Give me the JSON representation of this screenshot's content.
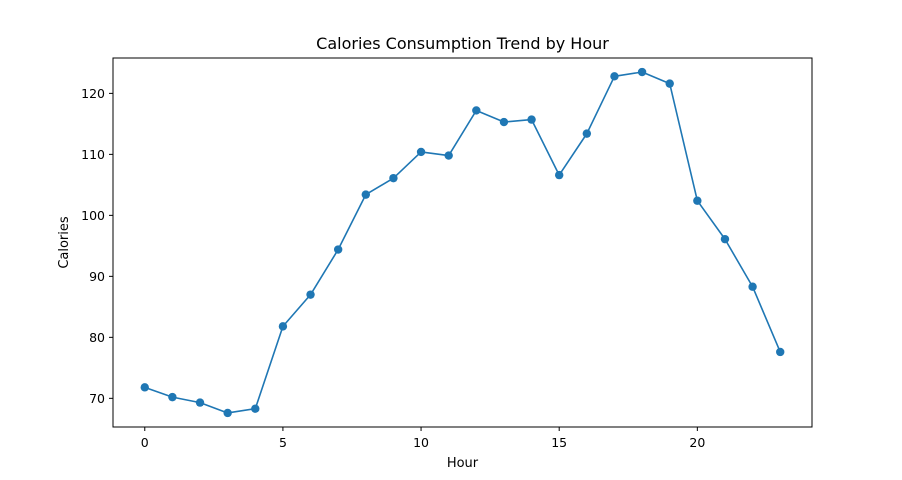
{
  "chart_data": {
    "type": "line",
    "title": "Calories Consumption Trend by Hour",
    "xlabel": "Hour",
    "ylabel": "Calories",
    "x": [
      0,
      1,
      2,
      3,
      4,
      5,
      6,
      7,
      8,
      9,
      10,
      11,
      12,
      13,
      14,
      15,
      16,
      17,
      18,
      19,
      20,
      21,
      22,
      23
    ],
    "series": [
      {
        "values": [
          71.8,
          70.2,
          69.3,
          67.6,
          68.3,
          81.8,
          87.0,
          94.4,
          103.4,
          106.1,
          110.4,
          109.8,
          117.2,
          115.3,
          115.7,
          106.6,
          113.4,
          122.8,
          123.5,
          121.6,
          102.4,
          96.1,
          88.3,
          77.6
        ],
        "color": "#1f77b4",
        "marker": "circle"
      }
    ],
    "xlim": [
      -1.15,
      24.15
    ],
    "ylim": [
      65.3,
      125.8
    ],
    "xticks": [
      0,
      5,
      10,
      15,
      20
    ],
    "xtick_labels": [
      "0",
      "5",
      "10",
      "15",
      "20"
    ],
    "yticks": [
      70,
      80,
      90,
      100,
      110,
      120
    ],
    "ytick_labels": [
      "70",
      "80",
      "90",
      "100",
      "110",
      "120"
    ],
    "grid": false,
    "legend": false
  }
}
